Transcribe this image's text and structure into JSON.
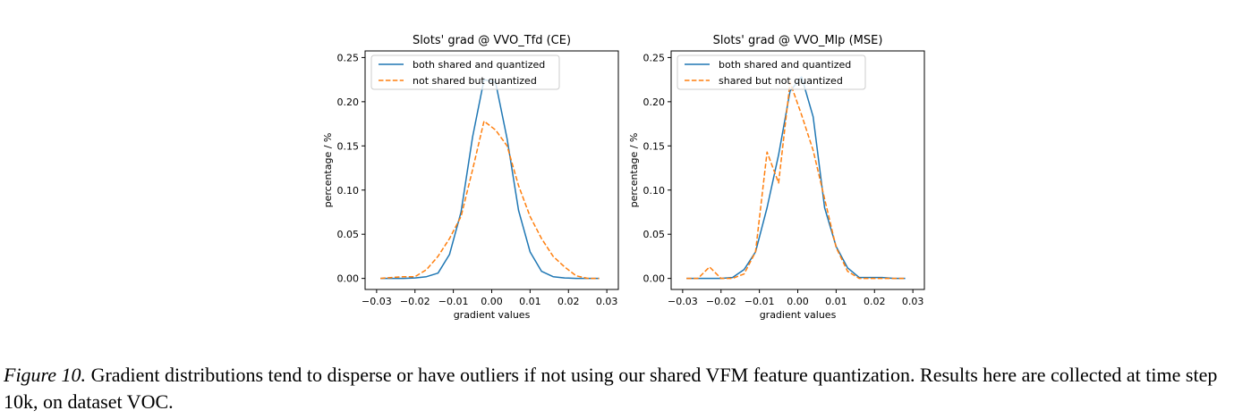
{
  "chart_data": [
    {
      "type": "line",
      "title": "Slots' grad @ VVO_Tfd (CE)",
      "xlabel": "gradient values",
      "ylabel": "percentage / %",
      "xlim": [
        -0.033,
        0.033
      ],
      "ylim": [
        -0.0125,
        0.2575
      ],
      "xticks": [
        -0.03,
        -0.02,
        -0.01,
        0.0,
        0.01,
        0.02,
        0.03
      ],
      "xtick_labels": [
        "−0.03",
        "−0.02",
        "−0.01",
        "0.00",
        "0.01",
        "0.02",
        "0.03"
      ],
      "yticks": [
        0.0,
        0.05,
        0.1,
        0.15,
        0.2,
        0.25
      ],
      "ytick_labels": [
        "0.00",
        "0.05",
        "0.10",
        "0.15",
        "0.20",
        "0.25"
      ],
      "grid": false,
      "legend_position": "top-left",
      "series": [
        {
          "name": "both shared and quantized",
          "color": "#1f77b4",
          "dashed": false,
          "x": [
            -0.029,
            -0.026,
            -0.023,
            -0.02,
            -0.017,
            -0.014,
            -0.011,
            -0.008,
            -0.005,
            -0.002,
            0.001,
            0.004,
            0.007,
            0.01,
            0.013,
            0.016,
            0.019,
            0.022,
            0.025,
            0.028
          ],
          "y": [
            0.0,
            0.0,
            0.0,
            0.0005,
            0.002,
            0.006,
            0.027,
            0.075,
            0.16,
            0.225,
            0.222,
            0.158,
            0.077,
            0.03,
            0.008,
            0.002,
            0.0005,
            0.0,
            0.0,
            0.0
          ]
        },
        {
          "name": "not shared but quantized",
          "color": "#ff7f0e",
          "dashed": true,
          "x": [
            -0.029,
            -0.026,
            -0.023,
            -0.02,
            -0.017,
            -0.014,
            -0.011,
            -0.008,
            -0.005,
            -0.002,
            0.001,
            0.004,
            0.007,
            0.01,
            0.013,
            0.016,
            0.019,
            0.022,
            0.025,
            0.028
          ],
          "y": [
            0.0,
            0.001,
            0.002,
            0.002,
            0.01,
            0.025,
            0.045,
            0.07,
            0.123,
            0.178,
            0.168,
            0.15,
            0.105,
            0.07,
            0.045,
            0.025,
            0.013,
            0.003,
            0.0,
            0.0
          ]
        }
      ]
    },
    {
      "type": "line",
      "title": "Slots' grad @ VVO_Mlp (MSE)",
      "xlabel": "gradient values",
      "ylabel": "percentage / %",
      "xlim": [
        -0.033,
        0.033
      ],
      "ylim": [
        -0.0125,
        0.2575
      ],
      "xticks": [
        -0.03,
        -0.02,
        -0.01,
        0.0,
        0.01,
        0.02,
        0.03
      ],
      "xtick_labels": [
        "−0.03",
        "−0.02",
        "−0.01",
        "0.00",
        "0.01",
        "0.02",
        "0.03"
      ],
      "yticks": [
        0.0,
        0.05,
        0.1,
        0.15,
        0.2,
        0.25
      ],
      "ytick_labels": [
        "0.00",
        "0.05",
        "0.10",
        "0.15",
        "0.20",
        "0.25"
      ],
      "grid": false,
      "legend_position": "top-left",
      "series": [
        {
          "name": "both shared and quantized",
          "color": "#1f77b4",
          "dashed": false,
          "x": [
            -0.029,
            -0.026,
            -0.023,
            -0.02,
            -0.017,
            -0.014,
            -0.011,
            -0.008,
            -0.005,
            -0.002,
            0.001,
            0.004,
            0.007,
            0.01,
            0.013,
            0.016,
            0.019,
            0.022,
            0.025,
            0.028
          ],
          "y": [
            0.0,
            0.0,
            0.0,
            0.0,
            0.001,
            0.01,
            0.03,
            0.08,
            0.14,
            0.212,
            0.228,
            0.183,
            0.08,
            0.036,
            0.012,
            0.001,
            0.001,
            0.001,
            0.0,
            0.0
          ]
        },
        {
          "name": "shared but not quantized",
          "color": "#ff7f0e",
          "dashed": true,
          "x": [
            -0.029,
            -0.026,
            -0.023,
            -0.02,
            -0.017,
            -0.014,
            -0.011,
            -0.008,
            -0.005,
            -0.002,
            0.001,
            0.004,
            0.007,
            0.01,
            0.013,
            0.016,
            0.019,
            0.022,
            0.025,
            0.028
          ],
          "y": [
            0.0,
            0.0,
            0.013,
            0.0,
            0.0,
            0.005,
            0.03,
            0.143,
            0.108,
            0.222,
            0.185,
            0.145,
            0.09,
            0.035,
            0.008,
            0.0,
            0.0,
            0.0,
            0.0,
            0.0
          ]
        }
      ]
    }
  ],
  "caption": {
    "label": "Figure 10.",
    "text": "Gradient distributions tend to disperse or have outliers if not using our shared VFM feature quantization. Results here are collected at time step 10k, on dataset VOC."
  }
}
